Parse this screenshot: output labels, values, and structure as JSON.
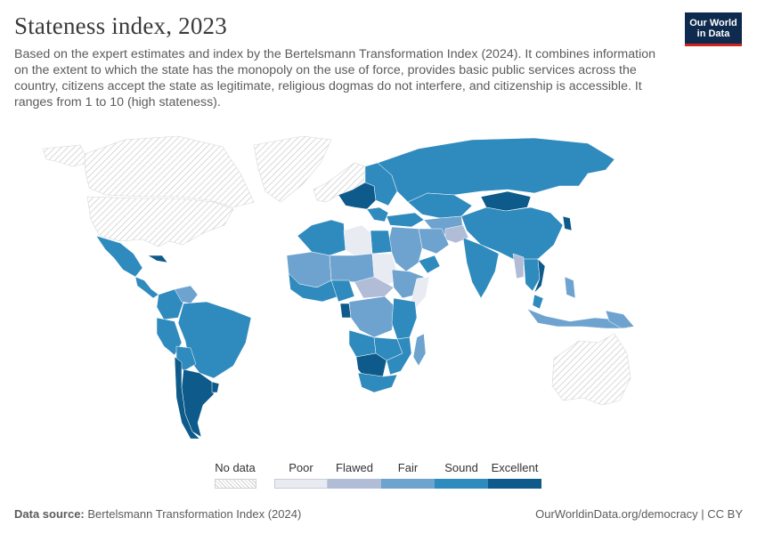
{
  "title": "Stateness index, 2023",
  "subtitle": "Based on the expert estimates and index by the Bertelsmann Transformation Index (2024). It combines information on the extent to which the state has the monopoly on the use of force, provides basic public services across the country, citizens accept the state as legitimate, religious dogmas do not interfere, and citizenship is accessible. It ranges from 1 to 10 (high stateness).",
  "logo": {
    "line1": "Our World",
    "line2": "in Data",
    "bg": "#0e2a4f",
    "accent": "#ce261e"
  },
  "legend": {
    "no_data_label": "No data",
    "categories": [
      {
        "label": "Poor",
        "color": "#e9ebf3"
      },
      {
        "label": "Flawed",
        "color": "#b1bcd6"
      },
      {
        "label": "Fair",
        "color": "#6ea3cf"
      },
      {
        "label": "Sound",
        "color": "#2f8bbe"
      },
      {
        "label": "Excellent",
        "color": "#0e5a8a"
      }
    ]
  },
  "footer": {
    "source_prefix": "Data source:",
    "source": "Bertelsmann Transformation Index (2024)",
    "link": "OurWorldinData.org/democracy | CC BY"
  }
}
